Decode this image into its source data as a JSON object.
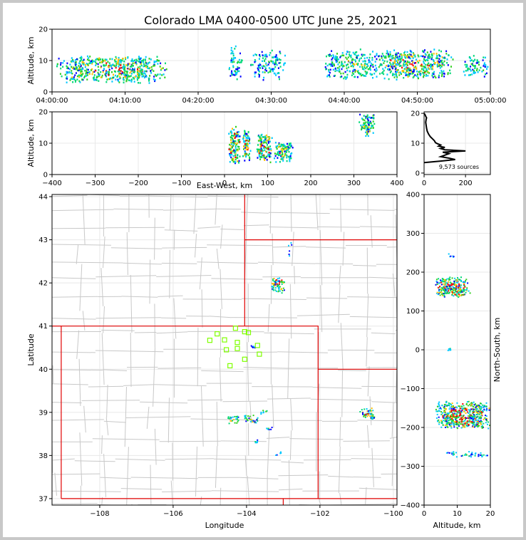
{
  "title": "Colorado LMA 0400-0500 UTC June 25, 2021",
  "colors": {
    "state_border": "#e00000",
    "county_border": "#c8c8c8",
    "station": "#7fff00",
    "source_scale": [
      "#0000ff",
      "#00c8ff",
      "#00d878",
      "#30d020",
      "#ffc000",
      "#ff0000"
    ]
  },
  "chart_data": [
    {
      "id": "alt-time",
      "type": "scatter",
      "xlabel": "",
      "ylabel": "Altitude, km",
      "x_ticks": [
        "04:00:00",
        "04:10:00",
        "04:20:00",
        "04:30:00",
        "04:40:00",
        "04:50:00",
        "05:00:00"
      ],
      "y_ticks": [
        "0",
        "10",
        "20"
      ],
      "ylim": [
        0,
        20
      ],
      "clusters": [
        {
          "t_min": [
            0,
            16
          ],
          "alt_km": [
            3,
            12
          ],
          "density": 0.8
        },
        {
          "t_min": [
            24,
            26
          ],
          "alt_km": [
            4,
            15
          ],
          "density": 0.5
        },
        {
          "t_min": [
            27,
            32
          ],
          "alt_km": [
            4,
            14
          ],
          "density": 0.5
        },
        {
          "t_min": [
            37,
            45
          ],
          "alt_km": [
            4,
            14
          ],
          "density": 0.6
        },
        {
          "t_min": [
            44,
            55
          ],
          "alt_km": [
            4,
            14
          ],
          "density": 0.8
        },
        {
          "t_min": [
            56,
            60
          ],
          "alt_km": [
            5,
            12
          ],
          "density": 0.5
        }
      ]
    },
    {
      "id": "alt-ew",
      "type": "scatter",
      "xlabel": "East-West, km",
      "ylabel": "Altitude, km",
      "x_ticks": [
        "−400",
        "−300",
        "−200",
        "−100",
        "0",
        "100",
        "200",
        "300",
        "400"
      ],
      "y_ticks": [
        "0",
        "10",
        "20"
      ],
      "xlim": [
        -400,
        400
      ],
      "ylim": [
        0,
        20
      ],
      "clusters": [
        {
          "x_km": [
            8,
            35
          ],
          "alt_km": [
            3,
            16
          ],
          "density": 1.0
        },
        {
          "x_km": [
            40,
            60
          ],
          "alt_km": [
            4,
            15
          ],
          "density": 0.9
        },
        {
          "x_km": [
            70,
            110
          ],
          "alt_km": [
            4,
            14
          ],
          "density": 0.9
        },
        {
          "x_km": [
            110,
            160
          ],
          "alt_km": [
            4,
            11
          ],
          "density": 0.8
        },
        {
          "x_km": [
            310,
            350
          ],
          "alt_km": [
            12,
            20
          ],
          "density": 0.7
        }
      ]
    },
    {
      "id": "histogram",
      "type": "line",
      "xlabel": "",
      "ylabel": "",
      "x_ticks": [
        "0",
        "200"
      ],
      "y_ticks": [
        "0",
        "10",
        "20"
      ],
      "xlim": [
        0,
        320
      ],
      "ylim": [
        -0.5,
        20.5
      ],
      "annotation": "9,573 sources",
      "profile": [
        [
          0,
          3.5
        ],
        [
          80,
          4.0
        ],
        [
          150,
          4.5
        ],
        [
          120,
          5.0
        ],
        [
          80,
          5.5
        ],
        [
          100,
          6.0
        ],
        [
          120,
          6.5
        ],
        [
          90,
          7.0
        ],
        [
          200,
          7.4
        ],
        [
          100,
          7.8
        ],
        [
          80,
          8.2
        ],
        [
          100,
          8.6
        ],
        [
          70,
          9.0
        ],
        [
          80,
          9.4
        ],
        [
          65,
          9.8
        ],
        [
          55,
          10.2
        ],
        [
          50,
          10.8
        ],
        [
          40,
          11.5
        ],
        [
          30,
          12.2
        ],
        [
          22,
          13
        ],
        [
          15,
          14
        ],
        [
          12,
          15
        ],
        [
          10,
          16
        ],
        [
          8,
          17
        ],
        [
          10,
          18
        ],
        [
          12,
          18.5
        ],
        [
          8,
          19
        ],
        [
          5,
          19.5
        ],
        [
          0,
          20
        ]
      ]
    },
    {
      "id": "map",
      "type": "scatter",
      "xlabel": "Longitude",
      "ylabel": "Latitude",
      "x_ticks": [
        "−108",
        "−106",
        "−104",
        "−102",
        "−100"
      ],
      "y_ticks": [
        "37",
        "38",
        "39",
        "40",
        "41",
        "42",
        "43",
        "44"
      ],
      "xlim": [
        -109.3,
        -99.9
      ],
      "ylim": [
        36.85,
        44.05
      ],
      "stations": [
        [
          -104.8,
          40.82
        ],
        [
          -104.3,
          40.95
        ],
        [
          -104.05,
          40.87
        ],
        [
          -103.95,
          40.85
        ],
        [
          -105.0,
          40.67
        ],
        [
          -104.6,
          40.68
        ],
        [
          -104.25,
          40.62
        ],
        [
          -103.7,
          40.55
        ],
        [
          -104.55,
          40.45
        ],
        [
          -104.25,
          40.48
        ],
        [
          -103.65,
          40.35
        ],
        [
          -104.05,
          40.23
        ],
        [
          -104.45,
          40.08
        ]
      ],
      "clusters": [
        {
          "lon": [
            -103.35,
            -102.95
          ],
          "lat": [
            41.75,
            42.15
          ],
          "density": 1.0
        },
        {
          "lon": [
            -102.9,
            -102.75
          ],
          "lat": [
            42.55,
            43.05
          ],
          "density": 0.2
        },
        {
          "lon": [
            -104.55,
            -104.2
          ],
          "lat": [
            38.75,
            38.95
          ],
          "density": 0.8
        },
        {
          "lon": [
            -104.1,
            -103.7
          ],
          "lat": [
            38.75,
            38.98
          ],
          "density": 0.8
        },
        {
          "lon": [
            -103.65,
            -103.45
          ],
          "lat": [
            38.95,
            39.1
          ],
          "density": 0.6
        },
        {
          "lon": [
            -103.5,
            -103.3
          ],
          "lat": [
            38.6,
            38.68
          ],
          "density": 0.4
        },
        {
          "lon": [
            -103.8,
            -103.7
          ],
          "lat": [
            38.3,
            38.4
          ],
          "density": 0.4
        },
        {
          "lon": [
            -103.25,
            -103.05
          ],
          "lat": [
            38.0,
            38.1
          ],
          "density": 0.3
        },
        {
          "lon": [
            -100.95,
            -100.5
          ],
          "lat": [
            38.85,
            39.12
          ],
          "density": 0.9
        },
        {
          "lon": [
            -103.9,
            -103.75
          ],
          "lat": [
            40.5,
            40.6
          ],
          "density": 0.2
        }
      ]
    },
    {
      "id": "ns-alt",
      "type": "scatter",
      "xlabel": "Altitude, km",
      "ylabel": "North-South, km",
      "x_ticks": [
        "0",
        "10",
        "20"
      ],
      "y_ticks": [
        "−400",
        "−300",
        "−200",
        "−100",
        "0",
        "100",
        "200",
        "300",
        "400"
      ],
      "xlim": [
        0,
        20
      ],
      "ylim": [
        -400,
        400
      ],
      "clusters": [
        {
          "alt_km": [
            3,
            14
          ],
          "y_km": [
            135,
            190
          ],
          "density": 1.0
        },
        {
          "alt_km": [
            7,
            9
          ],
          "y_km": [
            240,
            250
          ],
          "density": 0.3
        },
        {
          "alt_km": [
            7,
            8
          ],
          "y_km": [
            -5,
            8
          ],
          "density": 0.3
        },
        {
          "alt_km": [
            3,
            20
          ],
          "y_km": [
            -205,
            -130
          ],
          "density": 1.0
        },
        {
          "alt_km": [
            5,
            20
          ],
          "y_km": [
            -275,
            -260
          ],
          "density": 0.4
        }
      ]
    }
  ]
}
